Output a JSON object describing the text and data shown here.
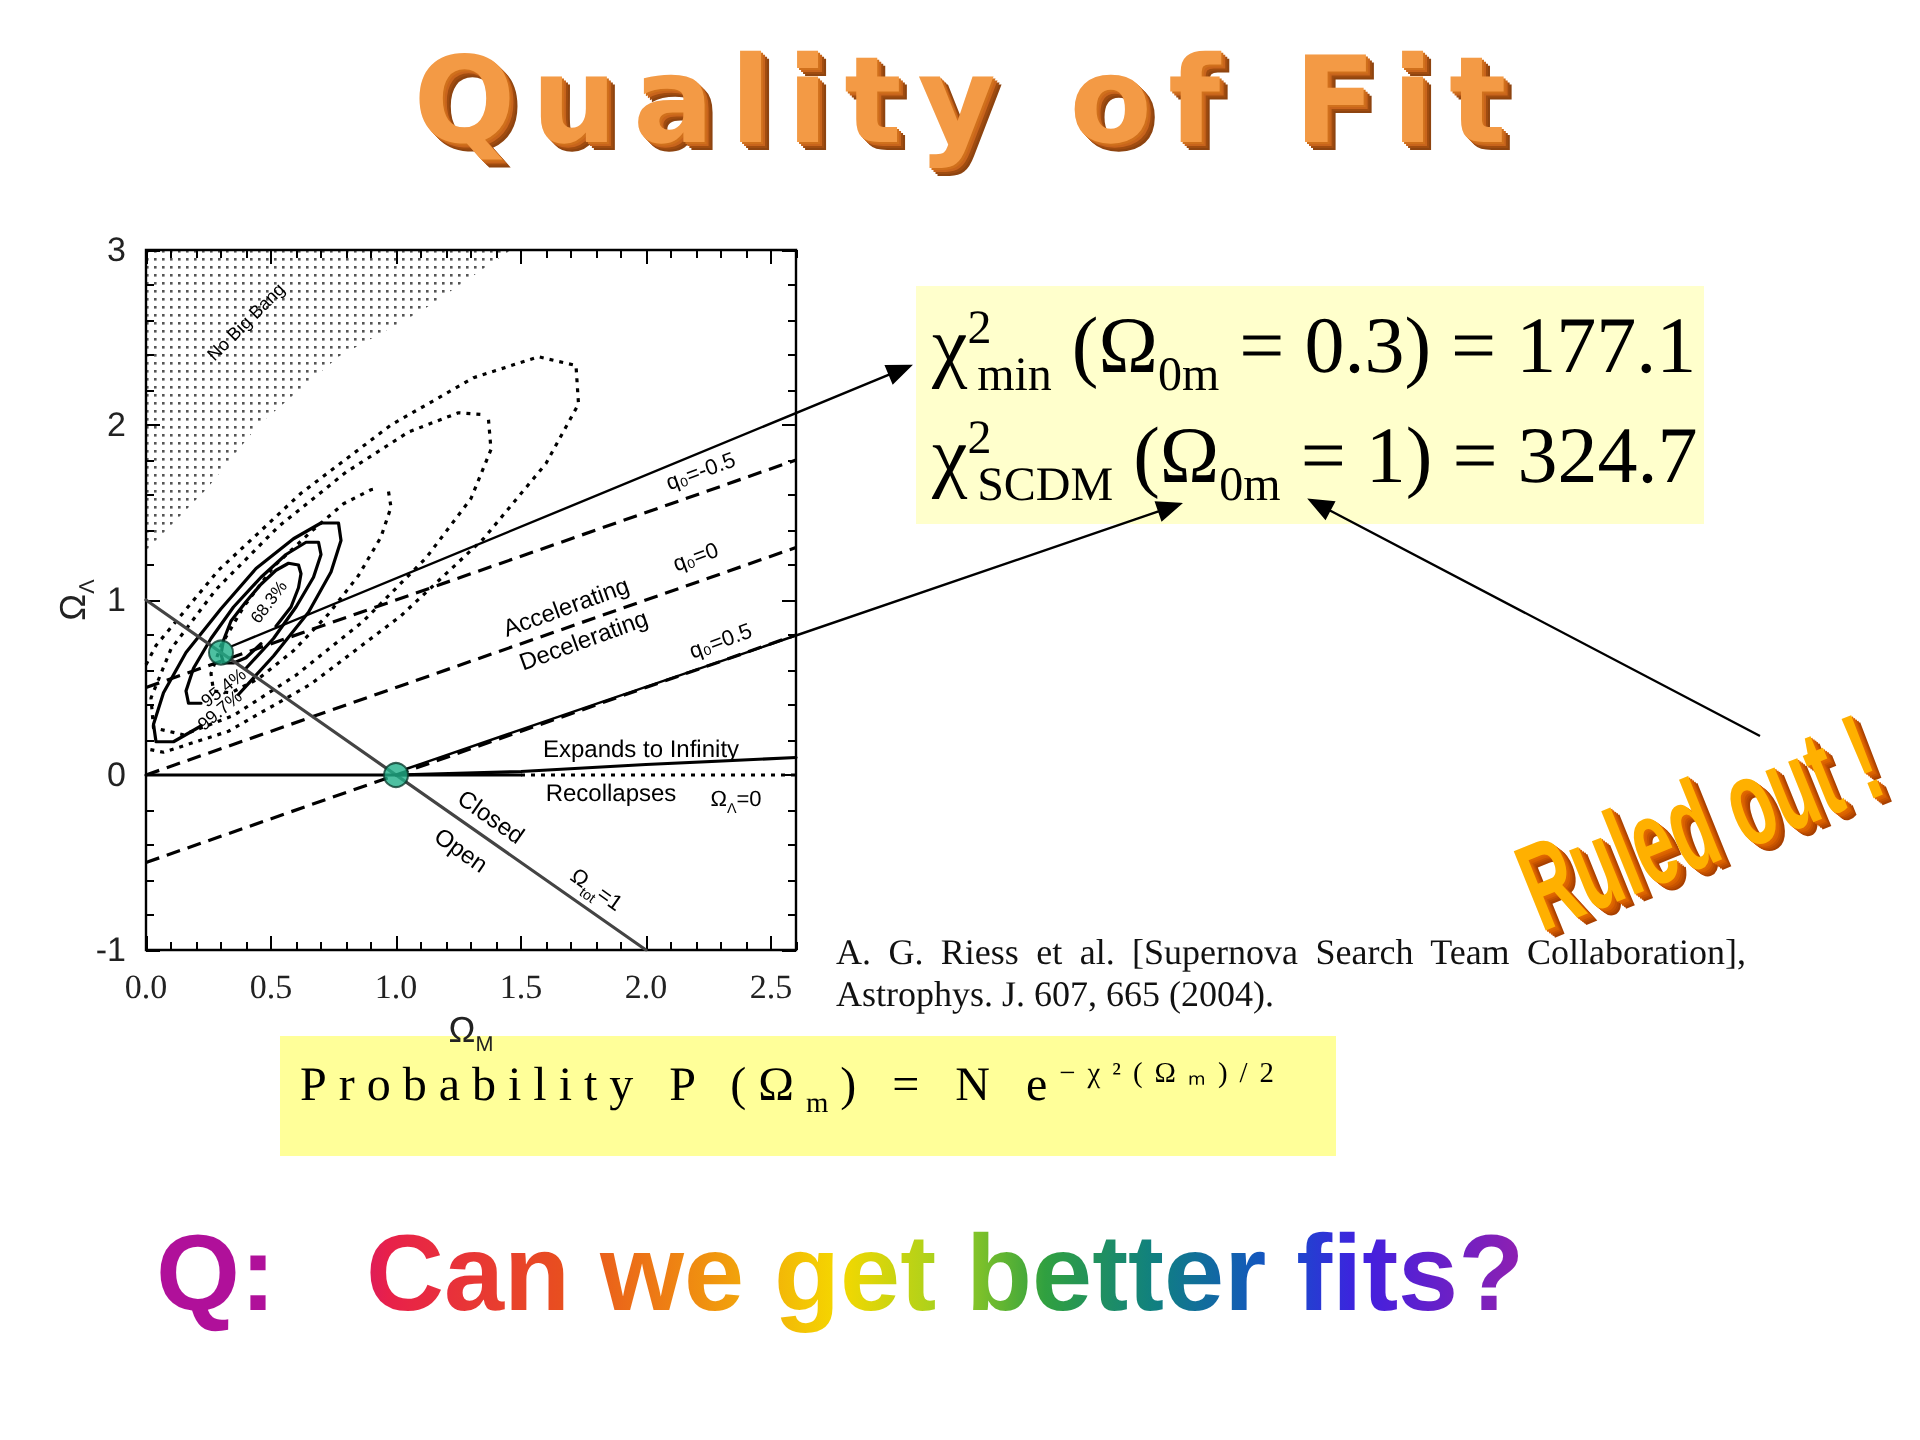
{
  "chart_data": {
    "type": "line",
    "title": "Quality of Fit",
    "xlabel": "Ω$_{M}$",
    "ylabel": "Ω$_{Λ}$",
    "xlim": [
      0,
      2.6
    ],
    "ylim": [
      -1,
      3
    ],
    "xticks": [
      {
        "value": 0,
        "label": "0.0"
      },
      0.5,
      {
        "value": 1,
        "label": "1.0"
      },
      1.5,
      {
        "value": 2,
        "label": "2.0"
      },
      2.5
    ],
    "yticks": [
      -1,
      0,
      1,
      2,
      3
    ],
    "grid": false,
    "marker": "none",
    "series": [
      {
        "x": [
          0.46,
          0.4,
          0.35,
          0.31,
          0.3,
          0.31,
          0.34,
          0.4,
          0.46,
          0.52,
          0.57,
          0.61,
          0.62,
          0.61,
          0.58,
          0.52
        ],
        "values": [
          0.75,
          0.67,
          0.64,
          0.64,
          0.69,
          0.77,
          0.88,
          0.99,
          1.09,
          1.17,
          1.21,
          1.2,
          1.15,
          1.07,
          0.96,
          0.85
        ],
        "color": "#000000",
        "line_style": "solid"
      },
      {
        "x": [
          0.22,
          0.17,
          0.16,
          0.19,
          0.26,
          0.35,
          0.46,
          0.56,
          0.64,
          0.69,
          0.7,
          0.67,
          0.6,
          0.51,
          0.4
        ],
        "values": [
          0.41,
          0.41,
          0.48,
          0.61,
          0.78,
          0.96,
          1.13,
          1.26,
          1.33,
          1.33,
          1.26,
          1.13,
          0.96,
          0.78,
          0.61
        ],
        "color": "#000000",
        "line_style": "solid"
      },
      {
        "x": [
          0.22,
          0.11,
          0.04,
          0.03,
          0.07,
          0.16,
          0.3,
          0.44,
          0.59,
          0.7,
          0.77,
          0.78,
          0.74,
          0.65,
          0.51,
          0.37
        ],
        "values": [
          0.28,
          0.19,
          0.19,
          0.29,
          0.47,
          0.7,
          0.95,
          1.18,
          1.35,
          1.44,
          1.44,
          1.34,
          1.16,
          0.93,
          0.68,
          0.46
        ],
        "color": "#000000",
        "line_style": "solid"
      },
      {
        "x": [
          0.97,
          0.98,
          0.94,
          0.85,
          0.73,
          0.59,
          0.45,
          0.34,
          0.27,
          0.26,
          0.3,
          0.39,
          0.51,
          0.66,
          0.79,
          0.9,
          0.93
        ],
        "values": [
          1.62,
          1.53,
          1.36,
          1.14,
          0.92,
          0.71,
          0.55,
          0.47,
          0.48,
          0.58,
          0.74,
          0.96,
          1.19,
          1.39,
          1.55,
          1.63,
          1.64
        ],
        "color": "#000000",
        "line_style": "dotted"
      },
      {
        "x": [
          1.37,
          1.38,
          1.3,
          1.12,
          0.87,
          0.6,
          0.35,
          0.15,
          0.03,
          0.02,
          0.1,
          0.28,
          0.53,
          0.8,
          1.05,
          1.25,
          1.34
        ],
        "values": [
          2.03,
          1.86,
          1.58,
          1.24,
          0.88,
          0.57,
          0.34,
          0.23,
          0.27,
          0.44,
          0.72,
          1.06,
          1.42,
          1.73,
          1.96,
          2.07,
          2.06
        ],
        "color": "#000000",
        "line_style": "dotted"
      },
      {
        "x": [
          0,
          0.04,
          0.29,
          0.62,
          0.98,
          1.31,
          1.57,
          1.72,
          1.73,
          1.6,
          1.35,
          1.02,
          0.66,
          0.33,
          0.07,
          0
        ],
        "values": [
          0.63,
          0.74,
          1.17,
          1.61,
          2,
          2.27,
          2.39,
          2.34,
          2.12,
          1.78,
          1.35,
          0.91,
          0.52,
          0.25,
          0.13,
          0.15
        ],
        "color": "#000000",
        "line_style": "dotted"
      },
      {
        "x": [
          0,
          2.6
        ],
        "values": [
          0.5,
          1.8
        ],
        "color": "#000000",
        "line_style": "dashed"
      },
      {
        "x": [
          0,
          2.6
        ],
        "values": [
          0,
          1.3
        ],
        "color": "#000000",
        "line_style": "dashed"
      },
      {
        "x": [
          0,
          2.6
        ],
        "values": [
          -0.5,
          0.8
        ],
        "color": "#000000",
        "line_style": "dashed"
      },
      {
        "x": [
          0,
          2
        ],
        "values": [
          1,
          -1
        ],
        "color": "#444444",
        "line_style": "solid"
      },
      {
        "x": [
          0,
          1.5
        ],
        "values": [
          0,
          0
        ],
        "color": "#000000",
        "line_style": "solid"
      },
      {
        "x": [
          1.5,
          2.6
        ],
        "values": [
          0,
          0
        ],
        "color": "#000000",
        "line_style": "dotted"
      },
      {
        "x": [
          1,
          1.5,
          2,
          2.6
        ],
        "values": [
          0,
          0.02,
          0.06,
          0.1
        ],
        "color": "#000000",
        "line_style": "solid"
      },
      {
        "type": "scatter",
        "x": [
          0.3,
          1
        ],
        "values": [
          0.7,
          0
        ],
        "color": "#20b08a",
        "marker": "circle"
      }
    ],
    "annotations": [
      "No Big Bang",
      "68.3%",
      "95.4%",
      "99.7%",
      "q₀=-0.5",
      "q₀=0",
      "q₀=0.5",
      "Accelerating",
      "Decelerating",
      "Expands to Infinity",
      "Recollapses",
      "Ω$_{Λ}$=0",
      "Closed",
      "Open",
      "Ω$_{tot}$=1",
      "χ$^{2}$$_{min}$ (Ω$_{0m}$ = 0.3) = 177.1",
      "χ$^{2}$$_{SCDM}$ (Ω$_{0m}$ = 1) = 324.7",
      "Ruled out !",
      "A. G. Riess et al. [Supernova Search Team Collaboration], Astrophys. J. 607, 665 (2004).",
      "Probability P (Ω$_{m}$) = N e$^{−χ²(Ωₘ)/2}$",
      "Q:   Can we get better fits?"
    ]
  }
}
